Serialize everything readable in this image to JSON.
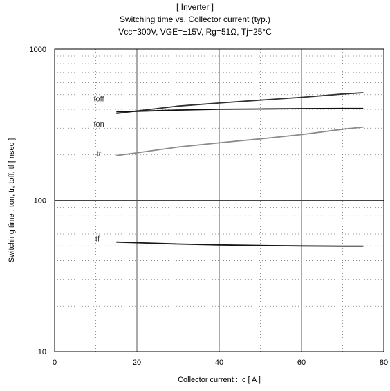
{
  "header": {
    "line1": "[ Inverter ]",
    "line2": "Switching time  vs.  Collector current  (typ.)",
    "line3": "Vcc=300V, VGE=±15V, Rg=51Ω, Tj=25°C"
  },
  "chart_data": {
    "type": "line",
    "title": "Switching time  vs.  Collector current  (typ.)",
    "xlabel": "Collector current  :  Ic  [ A ]",
    "ylabel": "Switching time  :  ton, tr, toff, tf  [ nsec ]",
    "xlim": [
      0,
      80
    ],
    "ylim": [
      10,
      1000
    ],
    "yscale": "log",
    "grid": true,
    "x_ticks": [
      "0",
      "20",
      "40",
      "60",
      "80"
    ],
    "y_ticks": [
      "10",
      "100",
      "1000"
    ],
    "series": [
      {
        "name": "toff",
        "x": [
          15,
          20,
          30,
          40,
          50,
          60,
          70,
          75
        ],
        "values": [
          375,
          390,
          420,
          440,
          460,
          480,
          505,
          515
        ],
        "color": "#303030"
      },
      {
        "name": "ton",
        "x": [
          15,
          20,
          30,
          40,
          50,
          60,
          70,
          75
        ],
        "values": [
          385,
          388,
          395,
          400,
          402,
          404,
          405,
          405
        ],
        "color": "#101010"
      },
      {
        "name": "tr",
        "x": [
          15,
          20,
          30,
          40,
          50,
          60,
          70,
          75
        ],
        "values": [
          198,
          206,
          225,
          240,
          255,
          272,
          295,
          305
        ],
        "color": "#8a8a8a"
      },
      {
        "name": "tf",
        "x": [
          15,
          20,
          30,
          40,
          50,
          60,
          70,
          75
        ],
        "values": [
          53,
          52.5,
          51.5,
          50.8,
          50.3,
          50,
          49.8,
          49.8
        ],
        "color": "#151515"
      }
    ],
    "series_labels": [
      "toff",
      "ton",
      "tr",
      "tf"
    ]
  }
}
